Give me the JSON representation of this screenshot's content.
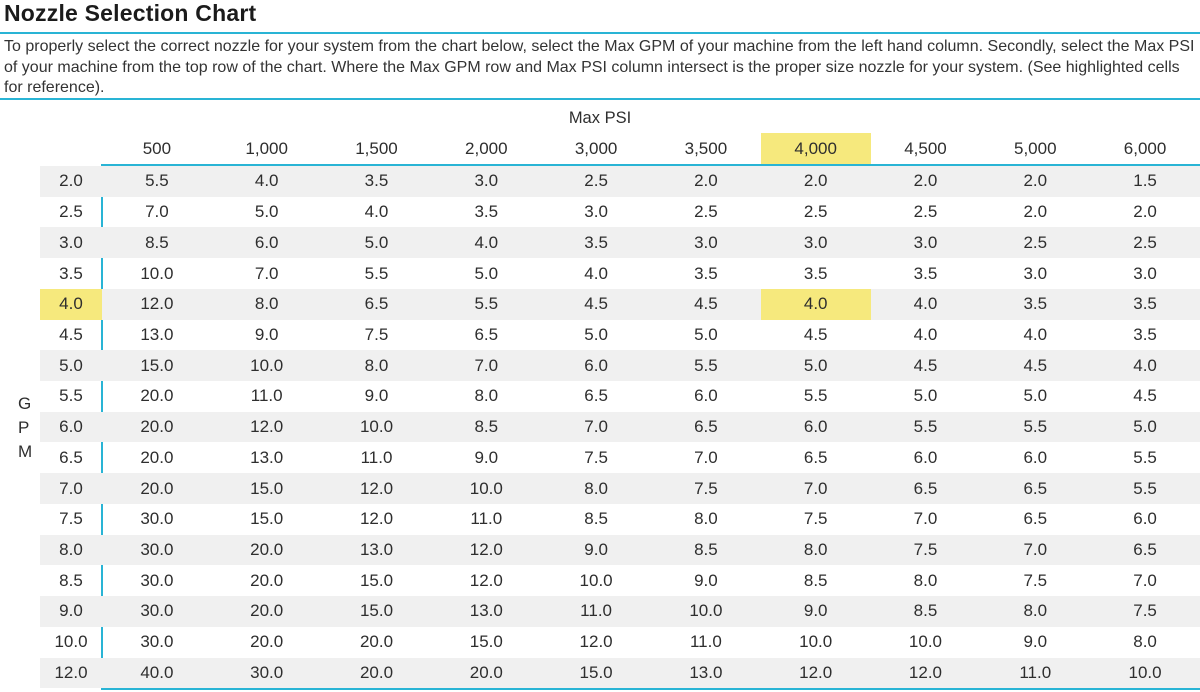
{
  "title": "Nozzle Selection Chart",
  "description": "To properly select the correct nozzle for your system from the chart below, select the Max GPM of your machine from the left hand column. Secondly, select the Max PSI of your machine from the top row of the chart. Where the Max GPM row and Max PSI column intersect is the proper size nozzle for your system. (See highlighted cells for reference).",
  "colors": {
    "accent_cyan": "#29b4d5",
    "highlight_yellow": "#f6e97d",
    "row_alt_gray": "#f0f0f0"
  },
  "axes": {
    "column_axis_label": "Max PSI",
    "row_axis_label": "GPM",
    "row_axis_letters": [
      "G",
      "P",
      "M"
    ]
  },
  "chart_data": {
    "type": "table",
    "title": "Nozzle Selection Chart",
    "column_header_label": "Max PSI",
    "row_header_label": "GPM",
    "columns": [
      "500",
      "1,000",
      "1,500",
      "2,000",
      "3,000",
      "3,500",
      "4,000",
      "4,500",
      "5,000",
      "6,000"
    ],
    "highlight": {
      "column_label": "4,000",
      "row_label": "4.0",
      "cell_value": "4.0",
      "col_index": 6,
      "row_index": 4
    },
    "rows": [
      {
        "gpm": "2.0",
        "values": [
          "5.5",
          "4.0",
          "3.5",
          "3.0",
          "2.5",
          "2.0",
          "2.0",
          "2.0",
          "2.0",
          "1.5"
        ]
      },
      {
        "gpm": "2.5",
        "values": [
          "7.0",
          "5.0",
          "4.0",
          "3.5",
          "3.0",
          "2.5",
          "2.5",
          "2.5",
          "2.0",
          "2.0"
        ]
      },
      {
        "gpm": "3.0",
        "values": [
          "8.5",
          "6.0",
          "5.0",
          "4.0",
          "3.5",
          "3.0",
          "3.0",
          "3.0",
          "2.5",
          "2.5"
        ]
      },
      {
        "gpm": "3.5",
        "values": [
          "10.0",
          "7.0",
          "5.5",
          "5.0",
          "4.0",
          "3.5",
          "3.5",
          "3.5",
          "3.0",
          "3.0"
        ]
      },
      {
        "gpm": "4.0",
        "values": [
          "12.0",
          "8.0",
          "6.5",
          "5.5",
          "4.5",
          "4.5",
          "4.0",
          "4.0",
          "3.5",
          "3.5"
        ]
      },
      {
        "gpm": "4.5",
        "values": [
          "13.0",
          "9.0",
          "7.5",
          "6.5",
          "5.0",
          "5.0",
          "4.5",
          "4.0",
          "4.0",
          "3.5"
        ]
      },
      {
        "gpm": "5.0",
        "values": [
          "15.0",
          "10.0",
          "8.0",
          "7.0",
          "6.0",
          "5.5",
          "5.0",
          "4.5",
          "4.5",
          "4.0"
        ]
      },
      {
        "gpm": "5.5",
        "values": [
          "20.0",
          "11.0",
          "9.0",
          "8.0",
          "6.5",
          "6.0",
          "5.5",
          "5.0",
          "5.0",
          "4.5"
        ]
      },
      {
        "gpm": "6.0",
        "values": [
          "20.0",
          "12.0",
          "10.0",
          "8.5",
          "7.0",
          "6.5",
          "6.0",
          "5.5",
          "5.5",
          "5.0"
        ]
      },
      {
        "gpm": "6.5",
        "values": [
          "20.0",
          "13.0",
          "11.0",
          "9.0",
          "7.5",
          "7.0",
          "6.5",
          "6.0",
          "6.0",
          "5.5"
        ]
      },
      {
        "gpm": "7.0",
        "values": [
          "20.0",
          "15.0",
          "12.0",
          "10.0",
          "8.0",
          "7.5",
          "7.0",
          "6.5",
          "6.5",
          "5.5"
        ]
      },
      {
        "gpm": "7.5",
        "values": [
          "30.0",
          "15.0",
          "12.0",
          "11.0",
          "8.5",
          "8.0",
          "7.5",
          "7.0",
          "6.5",
          "6.0"
        ]
      },
      {
        "gpm": "8.0",
        "values": [
          "30.0",
          "20.0",
          "13.0",
          "12.0",
          "9.0",
          "8.5",
          "8.0",
          "7.5",
          "7.0",
          "6.5"
        ]
      },
      {
        "gpm": "8.5",
        "values": [
          "30.0",
          "20.0",
          "15.0",
          "12.0",
          "10.0",
          "9.0",
          "8.5",
          "8.0",
          "7.5",
          "7.0"
        ]
      },
      {
        "gpm": "9.0",
        "values": [
          "30.0",
          "20.0",
          "15.0",
          "13.0",
          "11.0",
          "10.0",
          "9.0",
          "8.5",
          "8.0",
          "7.5"
        ]
      },
      {
        "gpm": "10.0",
        "values": [
          "30.0",
          "20.0",
          "20.0",
          "15.0",
          "12.0",
          "11.0",
          "10.0",
          "10.0",
          "9.0",
          "8.0"
        ]
      },
      {
        "gpm": "12.0",
        "values": [
          "40.0",
          "30.0",
          "20.0",
          "20.0",
          "15.0",
          "13.0",
          "12.0",
          "12.0",
          "11.0",
          "10.0"
        ]
      }
    ]
  }
}
